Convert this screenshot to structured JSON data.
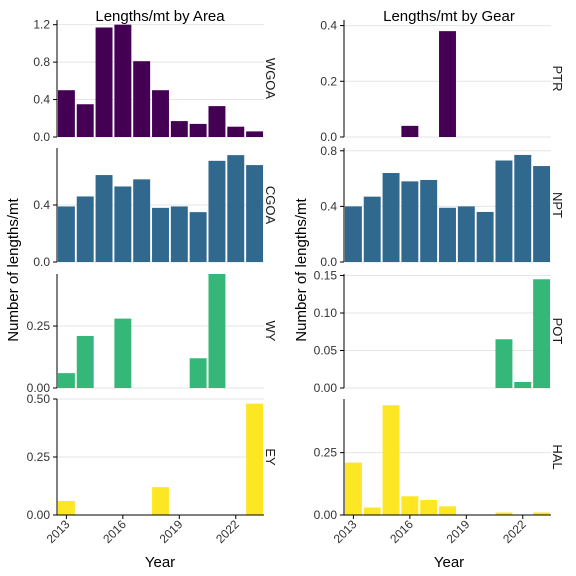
{
  "colors": {
    "WGOA": "#440154",
    "CGOA": "#31688e",
    "WY": "#35b779",
    "EY": "#fde725",
    "PTR": "#440154",
    "NPT": "#31688e",
    "POT": "#35b779",
    "HAL": "#fde725",
    "grid": "#e5e5e5",
    "axis": "#000000"
  },
  "chart_data": [
    {
      "type": "bar",
      "title": "Lengths/mt by Area",
      "xlabel": "Year",
      "ylabel": "Number of lengths/mt",
      "x": [
        2013,
        2014,
        2015,
        2016,
        2017,
        2018,
        2019,
        2020,
        2021,
        2022,
        2023
      ],
      "x_ticks": [
        "2013",
        "2016",
        "2019",
        "2022"
      ],
      "grid": "horizontal",
      "facets": [
        {
          "name": "WGOA",
          "values": [
            0.5,
            0.35,
            1.17,
            1.2,
            0.81,
            0.5,
            0.17,
            0.14,
            0.33,
            0.11,
            0.06
          ],
          "ylim": [
            0,
            1.25
          ],
          "yticks": [
            0.0,
            0.4,
            0.8,
            1.2
          ],
          "ytick_labels": [
            "0.0",
            "0.4",
            "0.8",
            "1.2"
          ]
        },
        {
          "name": "CGOA",
          "values": [
            0.39,
            0.46,
            0.61,
            0.53,
            0.58,
            0.38,
            0.39,
            0.35,
            0.71,
            0.75,
            0.68
          ],
          "ylim": [
            0,
            0.8
          ],
          "yticks": [
            0.0,
            0.4
          ],
          "ytick_labels": [
            "0.0",
            "0.4"
          ]
        },
        {
          "name": "WY",
          "values": [
            0.06,
            0.21,
            0,
            0.28,
            0,
            0,
            0,
            0.12,
            0.46,
            0,
            0
          ],
          "ylim": [
            0,
            0.46
          ],
          "yticks": [
            0.0,
            0.25
          ],
          "ytick_labels": [
            "0.00",
            "0.25"
          ]
        },
        {
          "name": "EY",
          "values": [
            0.06,
            0,
            0,
            0,
            0,
            0.12,
            0,
            0,
            0,
            0,
            0.48
          ],
          "ylim": [
            0,
            0.5
          ],
          "yticks": [
            0.0,
            0.25,
            0.5
          ],
          "ytick_labels": [
            "0.00",
            "0.25",
            "0.50"
          ]
        }
      ]
    },
    {
      "type": "bar",
      "title": "Lengths/mt by Gear",
      "xlabel": "Year",
      "ylabel": "Number of lengths/mt",
      "x": [
        2013,
        2014,
        2015,
        2016,
        2017,
        2018,
        2019,
        2020,
        2021,
        2022,
        2023
      ],
      "x_ticks": [
        "2013",
        "2016",
        "2019",
        "2022"
      ],
      "grid": "horizontal",
      "facets": [
        {
          "name": "PTR",
          "values": [
            0,
            0,
            0,
            0.04,
            0,
            0.38,
            0,
            0,
            0,
            0,
            0
          ],
          "ylim": [
            0,
            0.42
          ],
          "yticks": [
            0.0,
            0.2,
            0.4
          ],
          "ytick_labels": [
            "0.0",
            "0.2",
            "0.4"
          ]
        },
        {
          "name": "NPT",
          "values": [
            0.4,
            0.47,
            0.64,
            0.58,
            0.59,
            0.39,
            0.4,
            0.36,
            0.73,
            0.77,
            0.69
          ],
          "ylim": [
            0,
            0.82
          ],
          "yticks": [
            0.0,
            0.4,
            0.8
          ],
          "ytick_labels": [
            "0.0",
            "0.4",
            "0.8"
          ]
        },
        {
          "name": "POT",
          "values": [
            0,
            0,
            0,
            0,
            0,
            0,
            0,
            0,
            0.065,
            0.008,
            0.145
          ],
          "ylim": [
            0,
            0.152
          ],
          "yticks": [
            0.0,
            0.05,
            0.1,
            0.15
          ],
          "ytick_labels": [
            "0.00",
            "0.05",
            "0.10",
            "0.15"
          ]
        },
        {
          "name": "HAL",
          "values": [
            0.21,
            0.03,
            0.44,
            0.075,
            0.06,
            0.035,
            0,
            0,
            0.01,
            0,
            0.01
          ],
          "ylim": [
            0,
            0.465
          ],
          "yticks": [
            0.0,
            0.25
          ],
          "ytick_labels": [
            "0.00",
            "0.25"
          ]
        }
      ]
    }
  ]
}
